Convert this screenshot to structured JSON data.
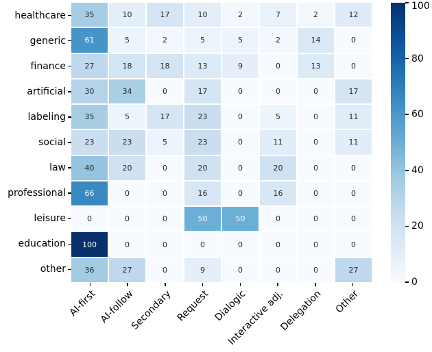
{
  "figure": {
    "background": "#ffffff",
    "text_color": "#000000"
  },
  "chart_data": {
    "type": "heatmap",
    "title": "",
    "xlabel": "",
    "ylabel": "",
    "rows": [
      "healthcare",
      "generic",
      "finance",
      "artificial",
      "labeling",
      "social",
      "law",
      "professional",
      "leisure",
      "education",
      "other"
    ],
    "columns": [
      "AI-first",
      "AI-follow",
      "Secondary",
      "Request",
      "Dialogic",
      "Interactive adj.",
      "Delegation",
      "Other"
    ],
    "values": [
      [
        35,
        10,
        17,
        10,
        2,
        7,
        2,
        12
      ],
      [
        61,
        5,
        2,
        5,
        5,
        2,
        14,
        0
      ],
      [
        27,
        18,
        18,
        13,
        9,
        0,
        13,
        0
      ],
      [
        30,
        34,
        0,
        17,
        0,
        0,
        0,
        17
      ],
      [
        35,
        5,
        17,
        23,
        0,
        5,
        0,
        11
      ],
      [
        23,
        23,
        5,
        23,
        0,
        11,
        0,
        11
      ],
      [
        40,
        20,
        0,
        20,
        0,
        20,
        0,
        0
      ],
      [
        66,
        0,
        0,
        16,
        0,
        16,
        0,
        0
      ],
      [
        0,
        0,
        0,
        50,
        50,
        0,
        0,
        0
      ],
      [
        100,
        0,
        0,
        0,
        0,
        0,
        0,
        0
      ],
      [
        36,
        27,
        0,
        9,
        0,
        0,
        0,
        27
      ]
    ],
    "vmin": 0,
    "vmax": 100,
    "colormap": "Blues",
    "colormap_anchors": [
      "#f7fbff",
      "#deebf7",
      "#c6dbef",
      "#9ecae1",
      "#6baed6",
      "#4292c6",
      "#2171b5",
      "#08519c",
      "#08306b"
    ],
    "colorbar_ticks": [
      0,
      20,
      40,
      60,
      80,
      100
    ],
    "annotations": true,
    "annotation_dark_color": "#262626",
    "annotation_light_color": "#ffffff",
    "annotation_light_threshold": 0.45,
    "gridline_color": "#ffffff",
    "x_tick_rotation_deg": 45,
    "legend_position": "right-colorbar"
  }
}
